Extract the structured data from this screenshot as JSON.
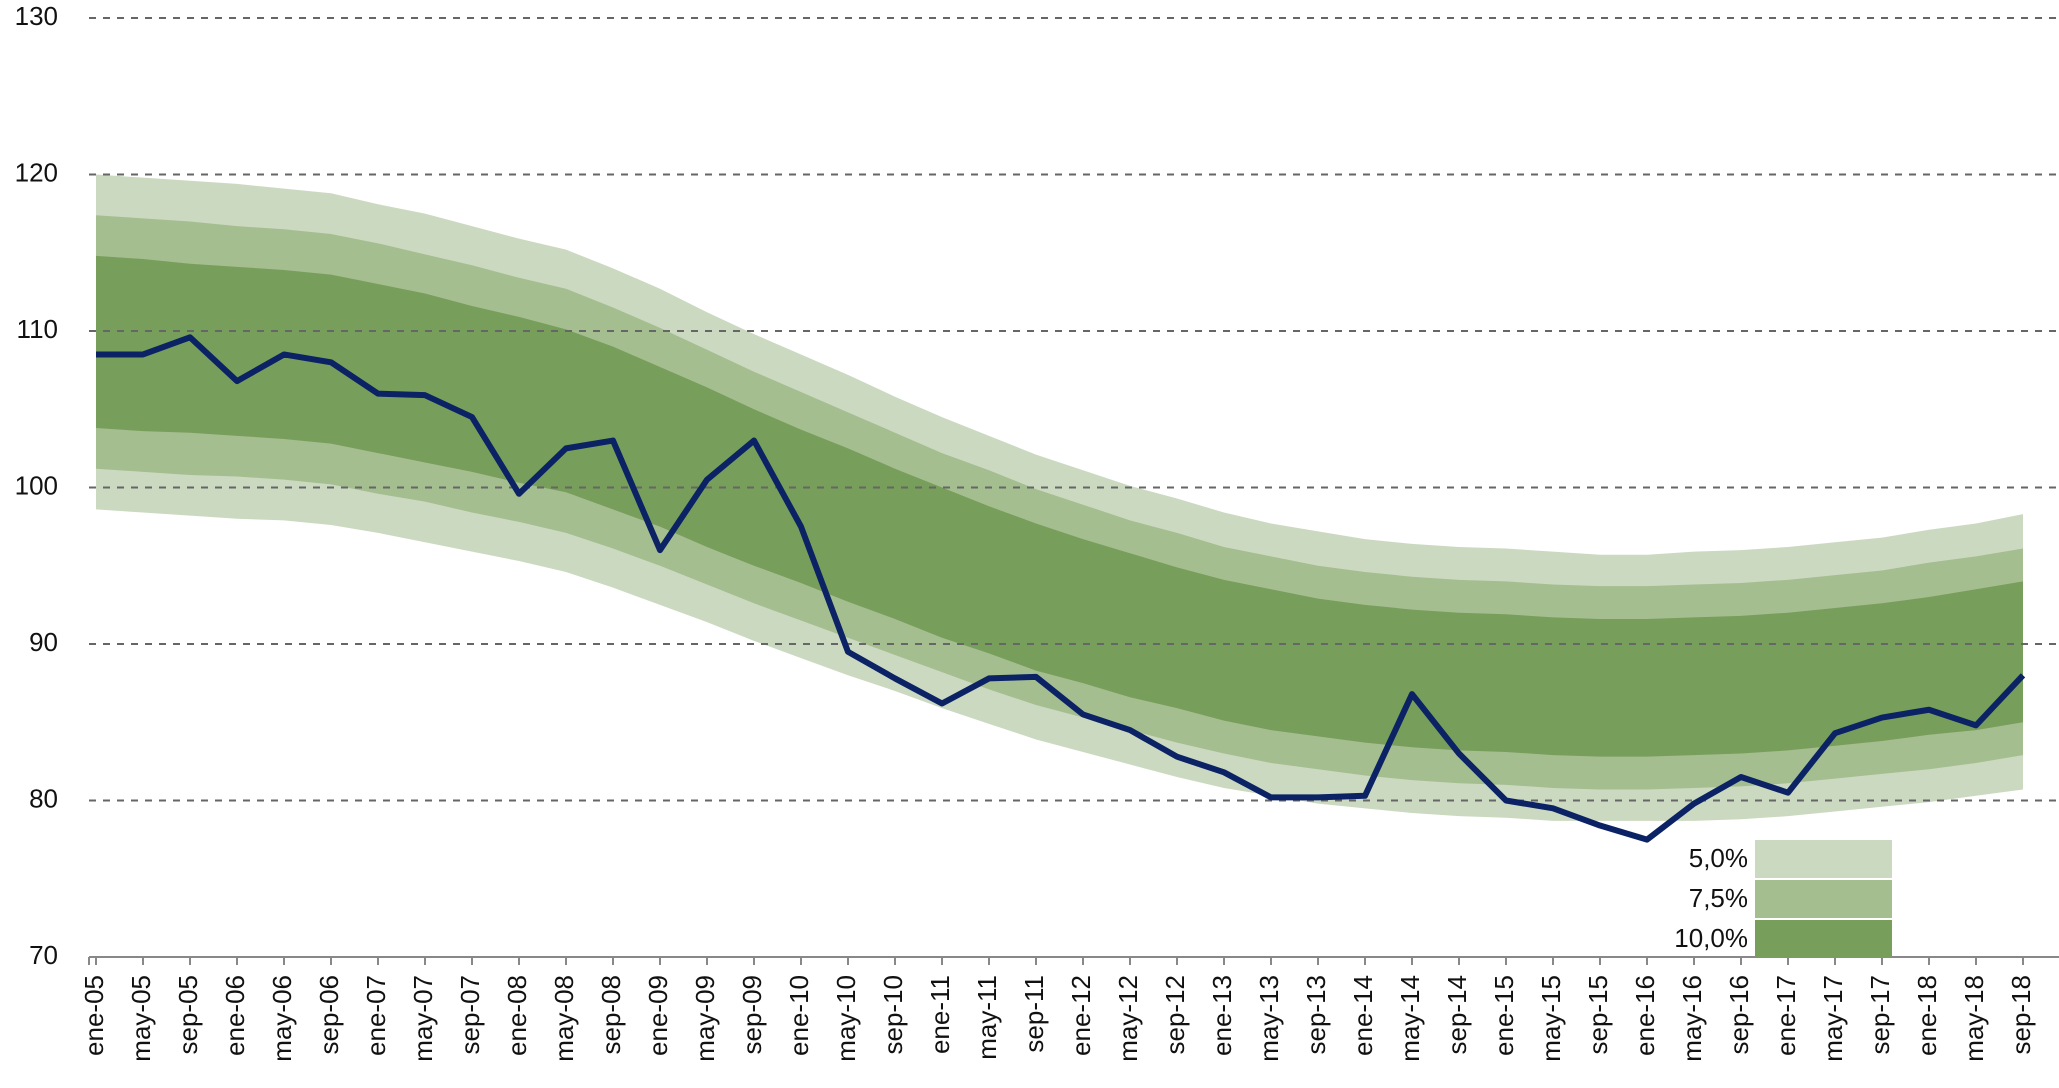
{
  "chart_data": {
    "type": "line",
    "categories": [
      "ene-05",
      "may-05",
      "sep-05",
      "ene-06",
      "may-06",
      "sep-06",
      "ene-07",
      "may-07",
      "sep-07",
      "ene-08",
      "may-08",
      "sep-08",
      "ene-09",
      "may-09",
      "sep-09",
      "ene-10",
      "may-10",
      "sep-10",
      "ene-11",
      "may-11",
      "sep-11",
      "ene-12",
      "may-12",
      "sep-12",
      "ene-13",
      "may-13",
      "sep-13",
      "ene-14",
      "may-14",
      "sep-14",
      "ene-15",
      "may-15",
      "sep-15",
      "ene-16",
      "may-16",
      "sep-16",
      "ene-17",
      "may-17",
      "sep-17",
      "ene-18",
      "may-18",
      "sep-18"
    ],
    "ylim": [
      70,
      130
    ],
    "yticks": [
      70,
      80,
      90,
      100,
      110,
      120,
      130
    ],
    "grid": true,
    "legend": "lower-right",
    "series": [
      {
        "type": "band",
        "name": "5,0%",
        "color": "#cbd9c1",
        "upper": [
          120.0,
          119.8,
          119.6,
          119.4,
          119.1,
          118.8,
          118.1,
          117.5,
          116.7,
          115.9,
          115.2,
          114.0,
          112.7,
          111.2,
          109.8,
          108.5,
          107.2,
          105.8,
          104.5,
          103.3,
          102.1,
          101.1,
          100.1,
          99.3,
          98.4,
          97.7,
          97.2,
          96.7,
          96.4,
          96.2,
          96.1,
          95.9,
          95.7,
          95.7,
          95.9,
          96.0,
          96.2,
          96.5,
          96.8,
          97.3,
          97.7,
          98.3
        ],
        "lower": [
          98.6,
          98.4,
          98.2,
          98.0,
          97.9,
          97.6,
          97.1,
          96.5,
          95.9,
          95.3,
          94.6,
          93.6,
          92.5,
          91.4,
          90.2,
          89.1,
          88.0,
          87.0,
          85.9,
          84.9,
          83.9,
          83.1,
          82.3,
          81.5,
          80.8,
          80.3,
          79.8,
          79.5,
          79.2,
          79.0,
          78.9,
          78.7,
          78.7,
          78.7,
          78.7,
          78.8,
          79.0,
          79.3,
          79.6,
          79.9,
          80.3,
          80.7
        ]
      },
      {
        "type": "band",
        "name": "7,5%",
        "color": "#a4be90",
        "upper": [
          117.4,
          117.2,
          117.0,
          116.7,
          116.5,
          116.2,
          115.6,
          114.9,
          114.2,
          113.4,
          112.7,
          111.5,
          110.2,
          108.8,
          107.4,
          106.1,
          104.8,
          103.5,
          102.2,
          101.1,
          99.9,
          98.9,
          97.9,
          97.1,
          96.2,
          95.6,
          95.0,
          94.6,
          94.3,
          94.1,
          94.0,
          93.8,
          93.7,
          93.7,
          93.8,
          93.9,
          94.1,
          94.4,
          94.7,
          95.2,
          95.6,
          96.1
        ],
        "lower": [
          101.2,
          101.0,
          100.8,
          100.7,
          100.5,
          100.2,
          99.6,
          99.1,
          98.4,
          97.8,
          97.1,
          96.1,
          95.0,
          93.8,
          92.6,
          91.5,
          90.4,
          89.3,
          88.2,
          87.1,
          86.1,
          85.3,
          84.5,
          83.7,
          83.0,
          82.4,
          82.0,
          81.6,
          81.3,
          81.1,
          81.0,
          80.8,
          80.7,
          80.7,
          80.8,
          80.9,
          81.1,
          81.4,
          81.7,
          82.0,
          82.4,
          82.9
        ]
      },
      {
        "type": "band",
        "name": "10,0%",
        "color": "#789e5b",
        "upper": [
          114.8,
          114.6,
          114.3,
          114.1,
          113.9,
          113.6,
          113.0,
          112.4,
          111.6,
          110.9,
          110.1,
          109.0,
          107.7,
          106.4,
          105.0,
          103.7,
          102.5,
          101.2,
          100.0,
          98.8,
          97.7,
          96.7,
          95.8,
          94.9,
          94.1,
          93.5,
          92.9,
          92.5,
          92.2,
          92.0,
          91.9,
          91.7,
          91.6,
          91.6,
          91.7,
          91.8,
          92.0,
          92.3,
          92.6,
          93.0,
          93.5,
          94.0
        ],
        "lower": [
          103.8,
          103.6,
          103.5,
          103.3,
          103.1,
          102.8,
          102.2,
          101.6,
          101.0,
          100.3,
          99.7,
          98.6,
          97.5,
          96.2,
          95.0,
          93.9,
          92.7,
          91.6,
          90.4,
          89.4,
          88.3,
          87.5,
          86.6,
          85.9,
          85.1,
          84.5,
          84.1,
          83.7,
          83.4,
          83.2,
          83.1,
          82.9,
          82.8,
          82.8,
          82.9,
          83.0,
          83.2,
          83.5,
          83.8,
          84.2,
          84.5,
          85.0
        ]
      },
      {
        "type": "line",
        "color": "#0b2265",
        "values": [
          108.5,
          108.5,
          109.6,
          106.8,
          108.5,
          108.0,
          106.0,
          105.9,
          104.5,
          99.6,
          102.5,
          103.0,
          96.0,
          100.5,
          103.0,
          97.5,
          89.5,
          87.8,
          86.2,
          87.8,
          87.9,
          85.5,
          84.5,
          82.8,
          81.8,
          80.2,
          80.2,
          80.3,
          86.8,
          83.0,
          80.0,
          79.5,
          78.4,
          77.5,
          79.8,
          81.5,
          80.5,
          84.3,
          85.3,
          85.8,
          84.8,
          88.0
        ]
      }
    ]
  }
}
